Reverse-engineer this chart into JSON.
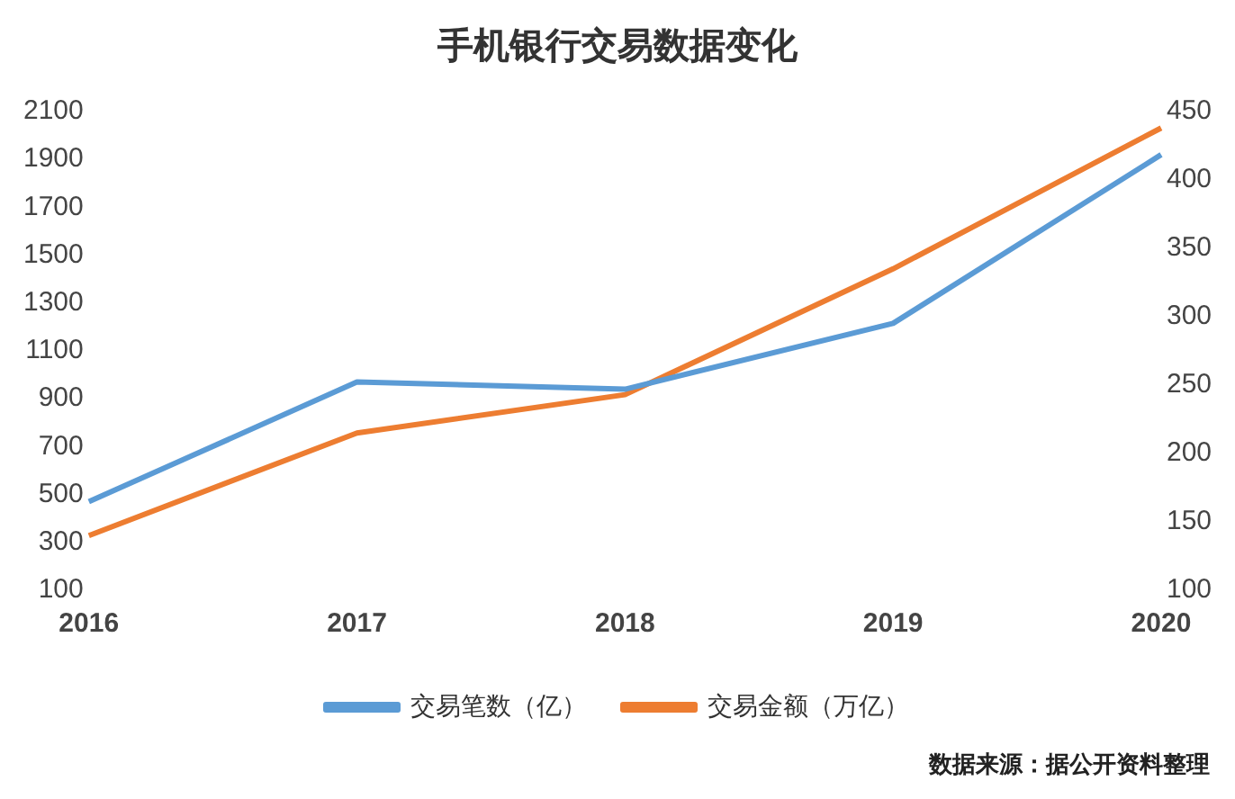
{
  "chart_data": {
    "type": "line",
    "title": "手机银行交易数据变化",
    "categories": [
      "2016",
      "2017",
      "2018",
      "2019",
      "2020"
    ],
    "series": [
      {
        "name": "交易笔数（亿）",
        "color": "#5b9bd5",
        "values": [
          470,
          970,
          940,
          1215,
          1920
        ]
      },
      {
        "name": "交易金额（万亿）",
        "color": "#ed7d31",
        "values": [
          140,
          215,
          243,
          335,
          438
        ],
        "axis": "y2"
      }
    ],
    "ylim": [
      100,
      2100
    ],
    "yticks": [
      100,
      300,
      500,
      700,
      900,
      1100,
      1300,
      1500,
      1700,
      1900,
      2100
    ],
    "y2lim": [
      100,
      450
    ],
    "y2ticks": [
      100,
      150,
      200,
      250,
      300,
      350,
      400,
      450
    ],
    "grid": false,
    "legend": "bottom",
    "marker": "none",
    "line_style": "solid",
    "annotations": [
      "数据来源：据公开资料整理"
    ]
  }
}
